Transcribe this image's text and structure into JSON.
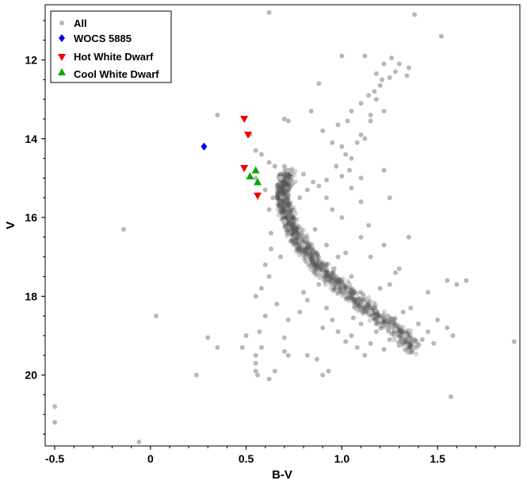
{
  "chart_data": {
    "type": "scatter",
    "title": "",
    "xlabel": "B-V",
    "ylabel": "V",
    "xlim": [
      -0.55,
      1.93
    ],
    "ylim": [
      21.8,
      10.6
    ],
    "y_inverted": true,
    "x_ticks": [
      -0.5,
      0,
      0.5,
      1,
      1.5
    ],
    "x_tick_labels": [
      "-0.5",
      "0",
      "0.5",
      "1.0",
      "1.5"
    ],
    "y_ticks": [
      12,
      14,
      16,
      18,
      20
    ],
    "y_tick_labels": [
      "12",
      "14",
      "16",
      "18",
      "20"
    ],
    "grid": false,
    "legend_position": "top-left",
    "colors": {
      "all": "#b8b8b8",
      "wocs": "#0000ee",
      "hot_wd": "#ee0000",
      "cool_wd": "#00aa00",
      "main_ridge": "#555555"
    },
    "series": [
      {
        "name": "All",
        "marker": "circle",
        "color": "#b8b8b8",
        "points": [
          [
            0.62,
            10.8
          ],
          [
            1.38,
            10.85
          ],
          [
            1.52,
            11.4
          ],
          [
            1.0,
            11.9
          ],
          [
            1.12,
            11.9
          ],
          [
            1.26,
            11.95
          ],
          [
            1.22,
            12.1
          ],
          [
            1.3,
            12.1
          ],
          [
            1.28,
            12.3
          ],
          [
            1.34,
            12.4
          ],
          [
            1.18,
            12.35
          ],
          [
            1.25,
            12.45
          ],
          [
            1.35,
            12.2
          ],
          [
            0.88,
            12.6
          ],
          [
            1.17,
            12.8
          ],
          [
            1.21,
            12.5
          ],
          [
            1.2,
            12.65
          ],
          [
            1.14,
            12.9
          ],
          [
            1.18,
            13.0
          ],
          [
            1.1,
            13.1
          ],
          [
            1.22,
            13.3
          ],
          [
            1.15,
            13.4
          ],
          [
            1.05,
            13.3
          ],
          [
            0.84,
            13.3
          ],
          [
            1.03,
            13.55
          ],
          [
            1.15,
            13.55
          ],
          [
            0.98,
            13.65
          ],
          [
            0.9,
            13.8
          ],
          [
            0.7,
            13.5
          ],
          [
            0.72,
            13.55
          ],
          [
            0.35,
            13.4
          ],
          [
            0.52,
            13.9
          ],
          [
            0.55,
            14.3
          ],
          [
            0.58,
            14.4
          ],
          [
            0.62,
            14.6
          ],
          [
            0.65,
            14.7
          ],
          [
            0.7,
            14.7
          ],
          [
            0.68,
            15.0
          ],
          [
            0.72,
            14.8
          ],
          [
            0.74,
            14.85
          ],
          [
            0.8,
            14.9
          ],
          [
            0.95,
            14.1
          ],
          [
            1.0,
            14.2
          ],
          [
            1.02,
            14.4
          ],
          [
            1.05,
            14.5
          ],
          [
            1.08,
            14.1
          ],
          [
            1.1,
            13.9
          ],
          [
            1.12,
            14.0
          ],
          [
            0.97,
            14.7
          ],
          [
            1.04,
            14.8
          ],
          [
            1.0,
            14.95
          ],
          [
            0.92,
            15.05
          ],
          [
            0.85,
            15.1
          ],
          [
            0.88,
            15.2
          ],
          [
            1.05,
            15.25
          ],
          [
            1.1,
            15.0
          ],
          [
            1.22,
            14.8
          ],
          [
            1.25,
            15.5
          ],
          [
            0.95,
            15.8
          ],
          [
            1.0,
            16.0
          ],
          [
            1.1,
            15.6
          ],
          [
            1.14,
            16.2
          ],
          [
            1.22,
            16.7
          ],
          [
            1.35,
            16.5
          ],
          [
            1.3,
            17.3
          ],
          [
            0.55,
            15.0
          ],
          [
            0.6,
            15.3
          ],
          [
            0.62,
            15.8
          ],
          [
            0.63,
            16.4
          ],
          [
            0.63,
            16.8
          ],
          [
            0.6,
            17.2
          ],
          [
            0.62,
            17.5
          ],
          [
            0.58,
            17.8
          ],
          [
            0.55,
            18.0
          ],
          [
            0.6,
            18.5
          ],
          [
            0.57,
            18.9
          ],
          [
            0.58,
            19.3
          ],
          [
            0.55,
            19.5
          ],
          [
            0.5,
            19.0
          ],
          [
            0.48,
            19.3
          ],
          [
            0.55,
            19.7
          ],
          [
            0.55,
            19.9
          ],
          [
            0.56,
            20.0
          ],
          [
            0.65,
            19.9
          ],
          [
            0.62,
            20.1
          ],
          [
            0.7,
            19.4
          ],
          [
            0.72,
            19.5
          ],
          [
            0.82,
            19.5
          ],
          [
            0.87,
            19.6
          ],
          [
            0.93,
            19.9
          ],
          [
            0.9,
            20.0
          ],
          [
            0.7,
            19.05
          ],
          [
            0.72,
            18.6
          ],
          [
            0.66,
            18.2
          ],
          [
            0.78,
            18.4
          ],
          [
            0.82,
            18.1
          ],
          [
            0.8,
            17.9
          ],
          [
            0.88,
            17.7
          ],
          [
            0.96,
            17.3
          ],
          [
            0.98,
            17.0
          ],
          [
            1.02,
            16.9
          ],
          [
            1.05,
            17.5
          ],
          [
            1.2,
            17.8
          ],
          [
            1.25,
            17.7
          ],
          [
            1.45,
            17.9
          ],
          [
            1.55,
            17.6
          ],
          [
            1.6,
            17.7
          ],
          [
            1.65,
            17.6
          ],
          [
            1.9,
            19.15
          ],
          [
            1.57,
            20.55
          ],
          [
            -0.14,
            16.3
          ],
          [
            0.03,
            18.5
          ],
          [
            0.35,
            19.3
          ],
          [
            0.3,
            19.05
          ],
          [
            0.24,
            20.0
          ],
          [
            -0.5,
            20.8
          ],
          [
            -0.5,
            21.2
          ],
          [
            -0.06,
            21.7
          ],
          [
            0.92,
            15.5
          ],
          [
            0.86,
            16.3
          ],
          [
            0.82,
            15.3
          ],
          [
            0.78,
            15.5
          ],
          [
            0.92,
            16.7
          ],
          [
            0.68,
            17.0
          ],
          [
            0.7,
            16.1
          ],
          [
            0.64,
            15.5
          ],
          [
            0.8,
            16.7
          ],
          [
            1.1,
            16.5
          ],
          [
            1.15,
            17.0
          ],
          [
            1.28,
            17.4
          ],
          [
            1.5,
            18.6
          ],
          [
            1.55,
            18.8
          ],
          [
            1.58,
            19.0
          ],
          [
            1.48,
            19.2
          ],
          [
            1.45,
            18.9
          ],
          [
            1.4,
            18.7
          ],
          [
            1.42,
            19.1
          ],
          [
            1.38,
            19.3
          ],
          [
            1.32,
            18.4
          ],
          [
            1.36,
            18.3
          ],
          [
            0.98,
            18.9
          ],
          [
            1.02,
            19.15
          ],
          [
            0.95,
            18.6
          ],
          [
            0.92,
            18.3
          ],
          [
            0.9,
            18.8
          ],
          [
            1.05,
            19.0
          ],
          [
            1.08,
            19.3
          ],
          [
            1.12,
            19.5
          ],
          [
            1.15,
            19.2
          ],
          [
            1.18,
            18.9
          ],
          [
            1.22,
            19.35
          ],
          [
            1.25,
            19.1
          ],
          [
            1.3,
            19.25
          ],
          [
            1.28,
            18.85
          ],
          [
            1.33,
            19.0
          ],
          [
            1.2,
            18.6
          ],
          [
            1.15,
            18.4
          ],
          [
            1.24,
            18.5
          ],
          [
            1.1,
            18.7
          ],
          [
            1.06,
            18.55
          ]
        ]
      },
      {
        "name": "WOCS 5885",
        "marker": "diamond",
        "color": "#0000ee",
        "points": [
          [
            0.28,
            14.2
          ]
        ]
      },
      {
        "name": "Hot White Dwarf",
        "marker": "triangle-down",
        "color": "#ee0000",
        "points": [
          [
            0.49,
            13.5
          ],
          [
            0.51,
            13.9
          ],
          [
            0.49,
            14.75
          ],
          [
            0.56,
            15.45
          ]
        ]
      },
      {
        "name": "Cool White Dwarf",
        "marker": "triangle-up",
        "color": "#00aa00",
        "points": [
          [
            0.55,
            14.8
          ],
          [
            0.52,
            14.95
          ],
          [
            0.56,
            15.1
          ]
        ]
      }
    ],
    "ridge_curve": [
      [
        0.73,
        14.9
      ],
      [
        0.7,
        15.1
      ],
      [
        0.69,
        15.4
      ],
      [
        0.7,
        15.7
      ],
      [
        0.72,
        16.0
      ],
      [
        0.74,
        16.3
      ],
      [
        0.78,
        16.6
      ],
      [
        0.82,
        16.9
      ],
      [
        0.87,
        17.2
      ],
      [
        0.93,
        17.5
      ],
      [
        1.0,
        17.8
      ],
      [
        1.08,
        18.1
      ],
      [
        1.16,
        18.4
      ],
      [
        1.24,
        18.7
      ],
      [
        1.32,
        19.0
      ],
      [
        1.38,
        19.3
      ]
    ]
  }
}
